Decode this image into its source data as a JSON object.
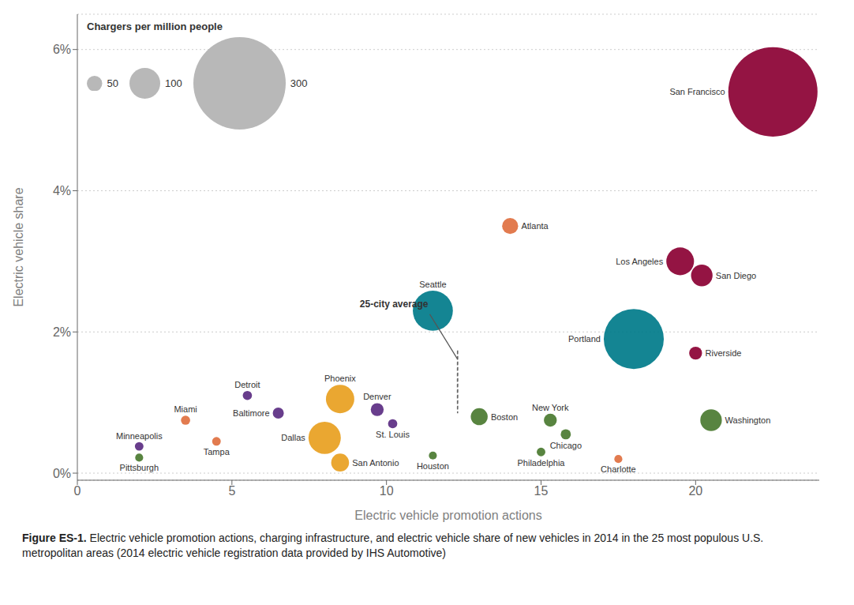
{
  "chart_data": {
    "type": "scatter",
    "xlabel": "Electric vehicle promotion actions",
    "ylabel": "Electric vehicle share",
    "xlim": [
      0,
      24
    ],
    "ylim": [
      -0.001,
      0.065
    ],
    "xticks": [
      0,
      5,
      10,
      15,
      20
    ],
    "yticks": [
      {
        "value": 0,
        "label": "0%"
      },
      {
        "value": 0.02,
        "label": "2%"
      },
      {
        "value": 0.04,
        "label": "4%"
      },
      {
        "value": 0.06,
        "label": "6%"
      }
    ],
    "grid": true,
    "legend": "upper left",
    "size_legend": {
      "title": "Chargers per million people",
      "sizes": [
        50,
        100,
        300
      ],
      "color": "#b8b8b8"
    },
    "points": [
      {
        "name": "San Francisco",
        "x": 22.5,
        "y": 0.054,
        "size": 290,
        "color": "#8B0033"
      },
      {
        "name": "Los Angeles",
        "x": 19.5,
        "y": 0.03,
        "size": 90,
        "color": "#8B0033"
      },
      {
        "name": "San Diego",
        "x": 20.2,
        "y": 0.028,
        "size": 70,
        "color": "#8B0033"
      },
      {
        "name": "Atlanta",
        "x": 14.0,
        "y": 0.035,
        "size": 52,
        "color": "#E07040"
      },
      {
        "name": "Seattle",
        "x": 11.5,
        "y": 0.023,
        "size": 130,
        "color": "#007b8a"
      },
      {
        "name": "Portland",
        "x": 18.0,
        "y": 0.019,
        "size": 195,
        "color": "#007b8a"
      },
      {
        "name": "Riverside",
        "x": 20.0,
        "y": 0.017,
        "size": 42,
        "color": "#8B0033"
      },
      {
        "name": "Washington",
        "x": 20.5,
        "y": 0.0075,
        "size": 70,
        "color": "#4a7a30"
      },
      {
        "name": "Boston",
        "x": 13.0,
        "y": 0.008,
        "size": 55,
        "color": "#4a7a30"
      },
      {
        "name": "New York",
        "x": 15.3,
        "y": 0.0075,
        "size": 42,
        "color": "#4a7a30"
      },
      {
        "name": "Chicago",
        "x": 15.8,
        "y": 0.0055,
        "size": 33,
        "color": "#4a7a30"
      },
      {
        "name": "Philadelphia",
        "x": 15.0,
        "y": 0.003,
        "size": 28,
        "color": "#4a7a30"
      },
      {
        "name": "Houston",
        "x": 11.5,
        "y": 0.0025,
        "size": 26,
        "color": "#4a7a30"
      },
      {
        "name": "Charlotte",
        "x": 17.5,
        "y": 0.002,
        "size": 26,
        "color": "#E07040"
      },
      {
        "name": "Denver",
        "x": 9.7,
        "y": 0.009,
        "size": 42,
        "color": "#5B2D82"
      },
      {
        "name": "St. Louis",
        "x": 10.2,
        "y": 0.007,
        "size": 30,
        "color": "#5B2D82"
      },
      {
        "name": "Phoenix",
        "x": 8.5,
        "y": 0.0105,
        "size": 92,
        "color": "#E8A020"
      },
      {
        "name": "Dallas",
        "x": 8.0,
        "y": 0.005,
        "size": 105,
        "color": "#E8A020"
      },
      {
        "name": "San Antonio",
        "x": 8.5,
        "y": 0.0015,
        "size": 58,
        "color": "#E8A020"
      },
      {
        "name": "Baltimore",
        "x": 6.5,
        "y": 0.0085,
        "size": 36,
        "color": "#5B2D82"
      },
      {
        "name": "Detroit",
        "x": 5.5,
        "y": 0.011,
        "size": 30,
        "color": "#5B2D82"
      },
      {
        "name": "Miami",
        "x": 3.5,
        "y": 0.0075,
        "size": 30,
        "color": "#E07040"
      },
      {
        "name": "Tampa",
        "x": 4.5,
        "y": 0.0045,
        "size": 28,
        "color": "#E07040"
      },
      {
        "name": "Minneapolis",
        "x": 2.0,
        "y": 0.0038,
        "size": 28,
        "color": "#5B2D82"
      },
      {
        "name": "Pittsburgh",
        "x": 2.0,
        "y": 0.0022,
        "size": 26,
        "color": "#4a7a30"
      }
    ],
    "average": {
      "label": "25-city average",
      "x": 12.3,
      "y": 0.013,
      "radius": 0.0045
    },
    "caption": {
      "bold": "Figure ES-1.",
      "text": "Electric vehicle promotion actions, charging infrastructure, and electric vehicle share of new vehicles in 2014 in the 25 most populous U.S. metropolitan areas (2014 electric vehicle registration data provided by IHS Automotive)"
    }
  }
}
